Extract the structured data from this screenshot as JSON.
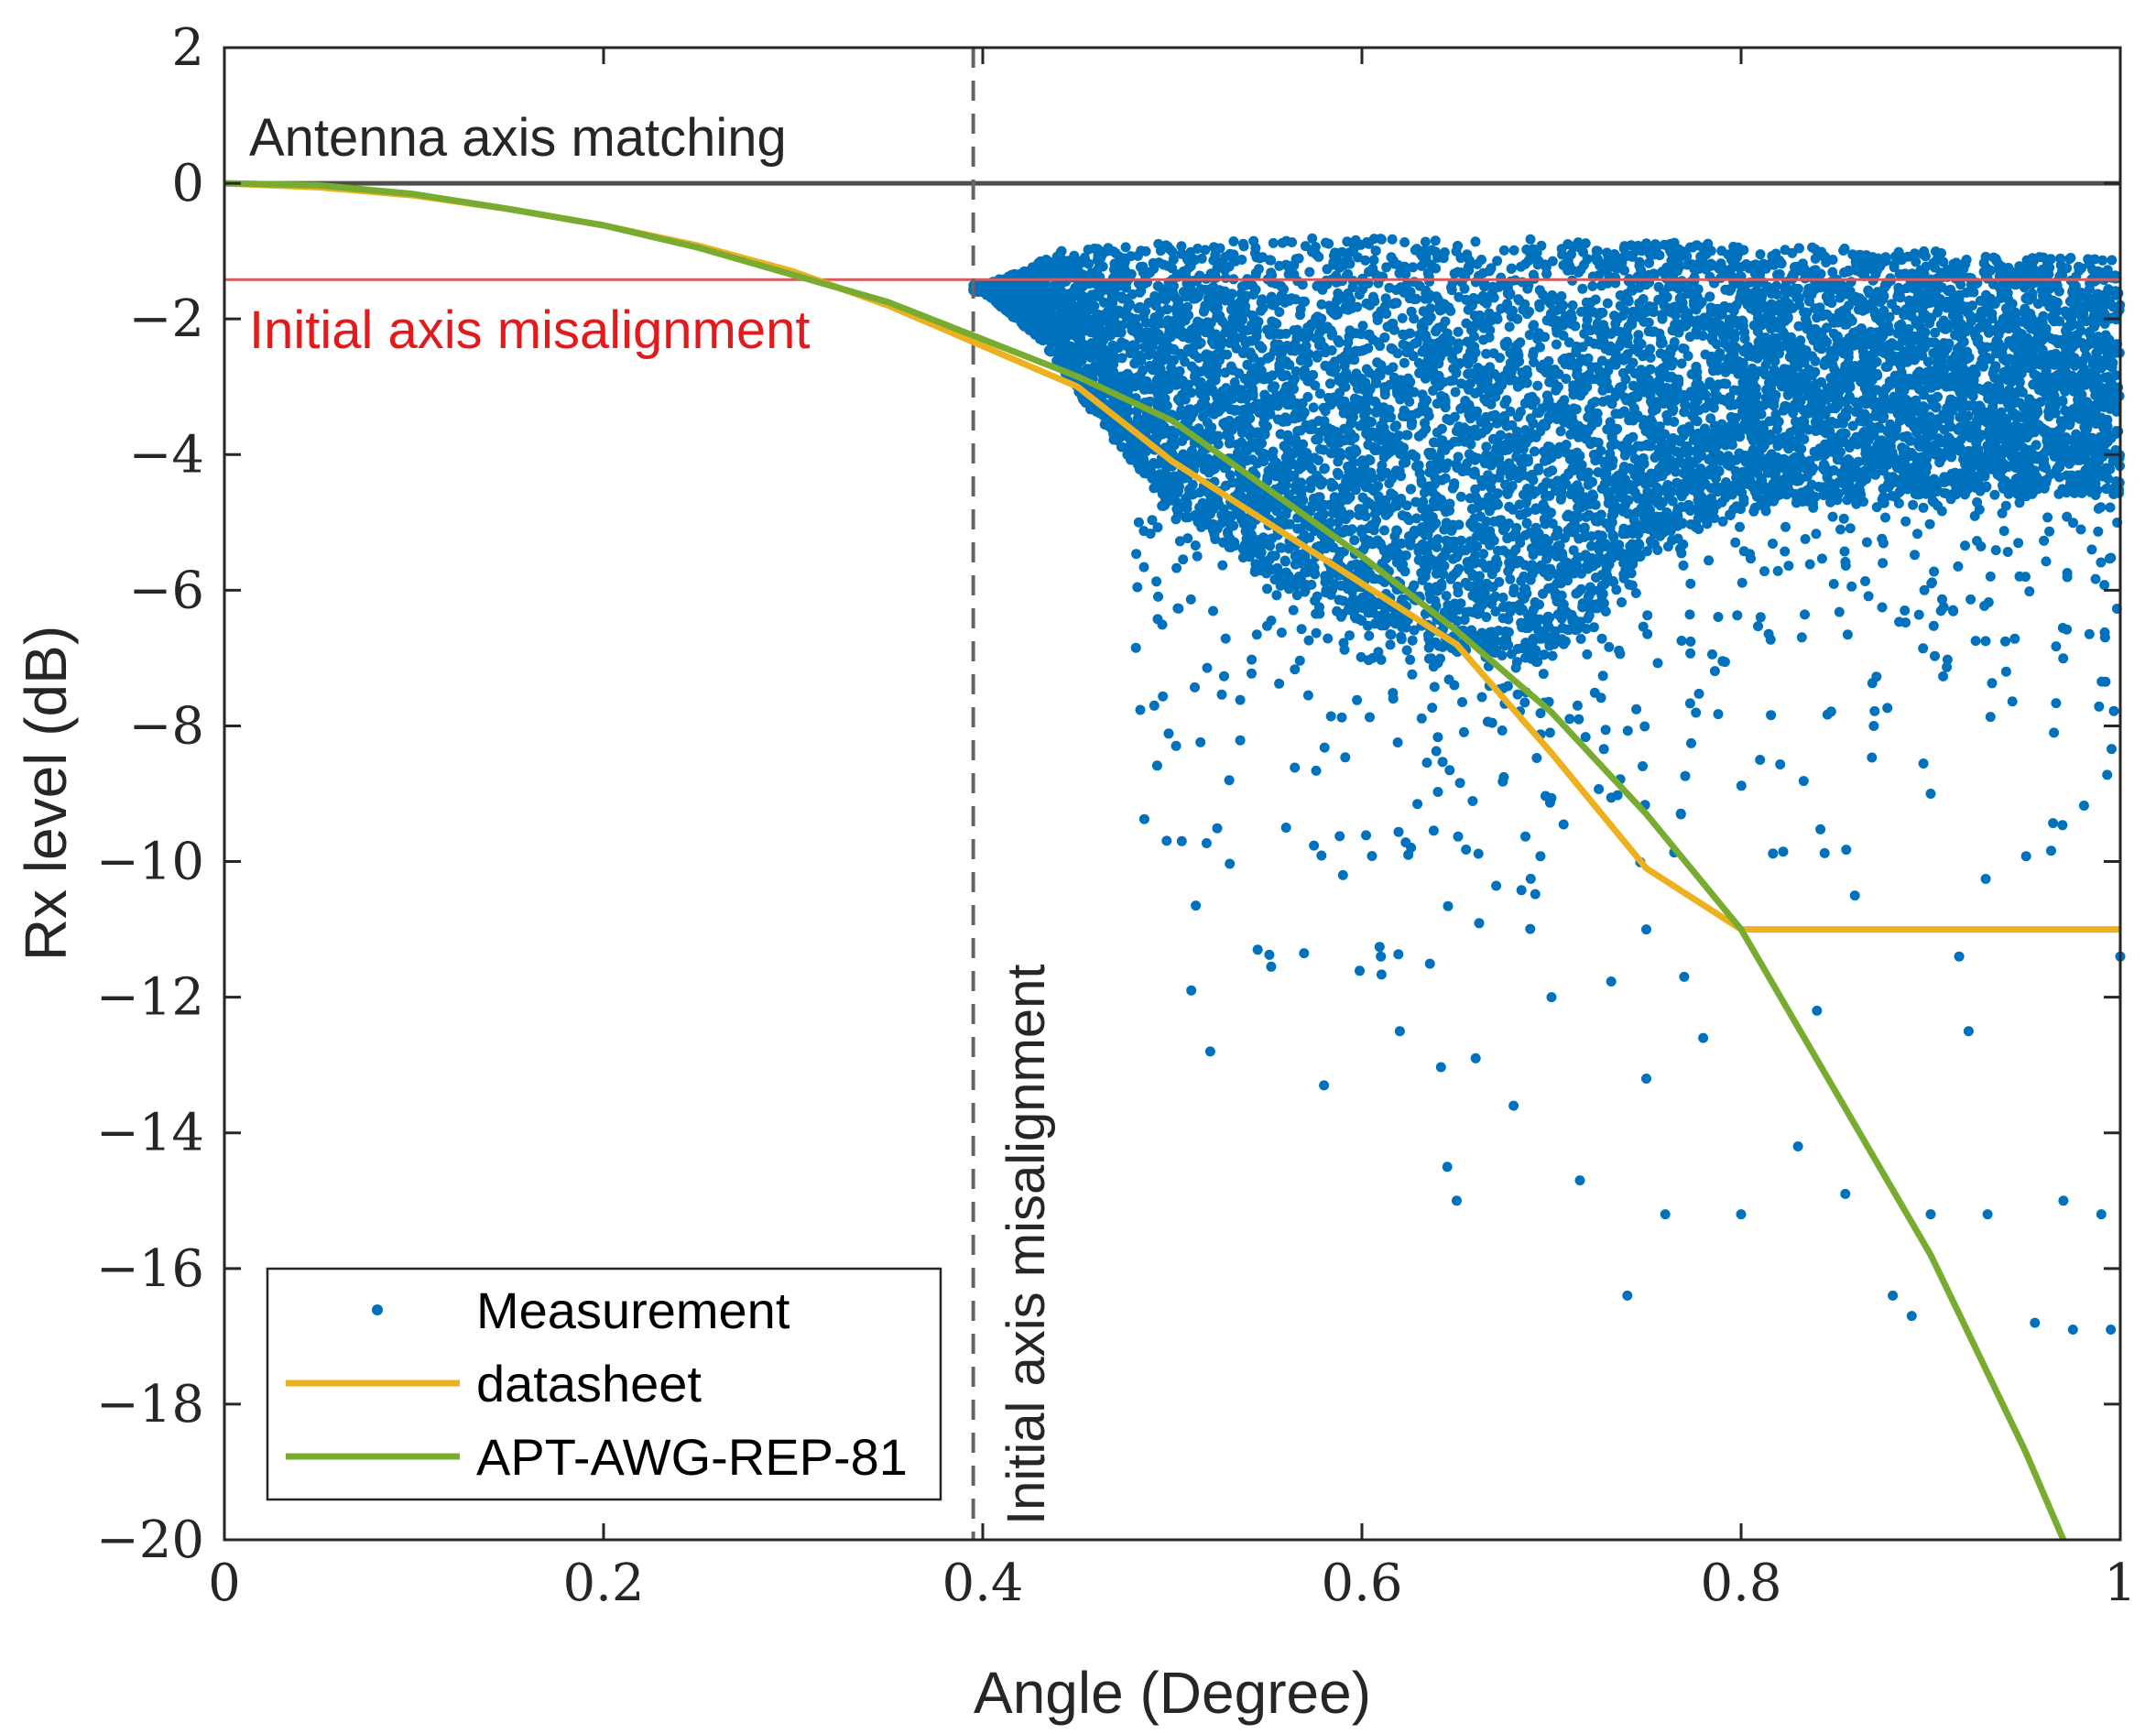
{
  "chart_data": {
    "type": "scatter",
    "xlabel": "Angle (Degree)",
    "ylabel": "Rx level (dB)",
    "xlim": [
      0,
      1
    ],
    "ylim": [
      -20,
      2
    ],
    "xticks": [
      0,
      0.2,
      0.4,
      0.6,
      0.8,
      1
    ],
    "xtick_labels": [
      "0",
      "0.2",
      "0.4",
      "0.6",
      "0.8",
      "1"
    ],
    "yticks": [
      2,
      0,
      -2,
      -4,
      -6,
      -8,
      -10,
      -12,
      -14,
      -16,
      -18,
      -20
    ],
    "ytick_labels": [
      "2",
      "0",
      "−2",
      "−4",
      "−6",
      "−8",
      "−10",
      "−12",
      "−14",
      "−16",
      "−18",
      "−20"
    ],
    "grid": false,
    "legend_position": "bottom-left",
    "series": [
      {
        "name": "Measurement",
        "kind": "scatter",
        "color": "#0072BD",
        "cloud_profile": {
          "x_start": 0.395,
          "top": [
            [
              0.4,
              -1.5
            ],
            [
              0.42,
              -1.3
            ],
            [
              0.44,
              -1.0
            ],
            [
              0.5,
              -0.85
            ],
            [
              0.6,
              -0.8
            ],
            [
              0.7,
              -0.8
            ],
            [
              0.8,
              -0.9
            ],
            [
              0.9,
              -1.0
            ],
            [
              1.0,
              -1.1
            ]
          ],
          "dense_bottom": [
            [
              0.4,
              -1.6
            ],
            [
              0.43,
              -2.3
            ],
            [
              0.46,
              -3.5
            ],
            [
              0.5,
              -4.8
            ],
            [
              0.55,
              -5.8
            ],
            [
              0.6,
              -6.5
            ],
            [
              0.65,
              -7.0
            ],
            [
              0.7,
              -7.0
            ],
            [
              0.75,
              -5.5
            ],
            [
              0.8,
              -4.8
            ],
            [
              0.9,
              -4.6
            ],
            [
              1.0,
              -4.6
            ]
          ]
        },
        "outliers": [
          [
            0.51,
            -11.9
          ],
          [
            0.52,
            -12.8
          ],
          [
            0.545,
            -11.3
          ],
          [
            0.58,
            -13.3
          ],
          [
            0.61,
            -11.4
          ],
          [
            0.62,
            -12.5
          ],
          [
            0.645,
            -14.5
          ],
          [
            0.65,
            -15.0
          ],
          [
            0.66,
            -12.9
          ],
          [
            0.68,
            -13.6
          ],
          [
            0.7,
            -12.0
          ],
          [
            0.715,
            -14.7
          ],
          [
            0.74,
            -16.4
          ],
          [
            0.75,
            -13.2
          ],
          [
            0.76,
            -15.2
          ],
          [
            0.8,
            -15.2
          ],
          [
            0.83,
            -14.2
          ],
          [
            0.855,
            -14.9
          ],
          [
            0.88,
            -16.4
          ],
          [
            0.89,
            -16.7
          ],
          [
            0.9,
            -15.2
          ],
          [
            0.93,
            -15.2
          ],
          [
            0.955,
            -16.8
          ],
          [
            0.975,
            -16.9
          ],
          [
            0.97,
            -15.0
          ],
          [
            0.995,
            -16.9
          ],
          [
            0.99,
            -15.2
          ],
          [
            0.965,
            -8.1
          ],
          [
            0.9,
            -9.0
          ],
          [
            0.87,
            -8.0
          ],
          [
            0.81,
            -8.5
          ],
          [
            0.95,
            -5.8
          ],
          [
            0.985,
            -5.4
          ],
          [
            1.0,
            -11.4
          ],
          [
            0.915,
            -11.4
          ],
          [
            0.86,
            -10.5
          ],
          [
            0.92,
            -12.5
          ],
          [
            0.75,
            -11.0
          ],
          [
            0.77,
            -11.7
          ],
          [
            0.78,
            -12.6
          ],
          [
            0.84,
            -12.2
          ],
          [
            0.505,
            -9.7
          ],
          [
            0.53,
            -8.8
          ],
          [
            0.56,
            -9.5
          ],
          [
            0.59,
            -10.2
          ]
        ]
      },
      {
        "name": "datasheet",
        "kind": "line",
        "color": "#EDB120",
        "x": [
          0,
          0.05,
          0.1,
          0.15,
          0.2,
          0.25,
          0.3,
          0.35,
          0.4,
          0.45,
          0.5,
          0.55,
          0.6,
          0.65,
          0.7,
          0.75,
          0.8,
          0.85,
          0.9,
          0.95,
          1.0
        ],
        "y": [
          0,
          -0.06,
          -0.18,
          -0.38,
          -0.62,
          -0.92,
          -1.3,
          -1.8,
          -2.4,
          -3.0,
          -4.1,
          -5.0,
          -5.9,
          -6.8,
          -8.4,
          -10.1,
          -11.0,
          -11.0,
          -11.0,
          -11.0,
          -11.0
        ]
      },
      {
        "name": "APT-AWG-REP-81",
        "kind": "line",
        "color": "#77AC30",
        "x": [
          0,
          0.05,
          0.1,
          0.15,
          0.2,
          0.25,
          0.3,
          0.35,
          0.4,
          0.45,
          0.5,
          0.55,
          0.6,
          0.65,
          0.7,
          0.75,
          0.8,
          0.85,
          0.9,
          0.95,
          0.97
        ],
        "y": [
          0,
          -0.03,
          -0.16,
          -0.38,
          -0.62,
          -0.95,
          -1.35,
          -1.75,
          -2.3,
          -2.85,
          -3.5,
          -4.5,
          -5.5,
          -6.6,
          -7.8,
          -9.3,
          -11.0,
          -13.4,
          -15.8,
          -18.7,
          -20.0
        ]
      },
      {
        "name": "Antenna axis matching",
        "kind": "hline",
        "color": "#4D4D4D",
        "y": 0
      },
      {
        "name": "Initial axis misalignment",
        "kind": "hline",
        "color": "#D95B5B",
        "y": -1.42
      },
      {
        "name": "Initial axis misalignment",
        "kind": "vline",
        "color": "#666666",
        "x": 0.395
      }
    ],
    "annotations": {
      "hline_top": "Antenna axis matching",
      "hline_red": "Initial axis misalignment",
      "vline": "Initial axis misalignment"
    },
    "legend": [
      "Measurement",
      "datasheet",
      "APT-AWG-REP-81"
    ]
  }
}
